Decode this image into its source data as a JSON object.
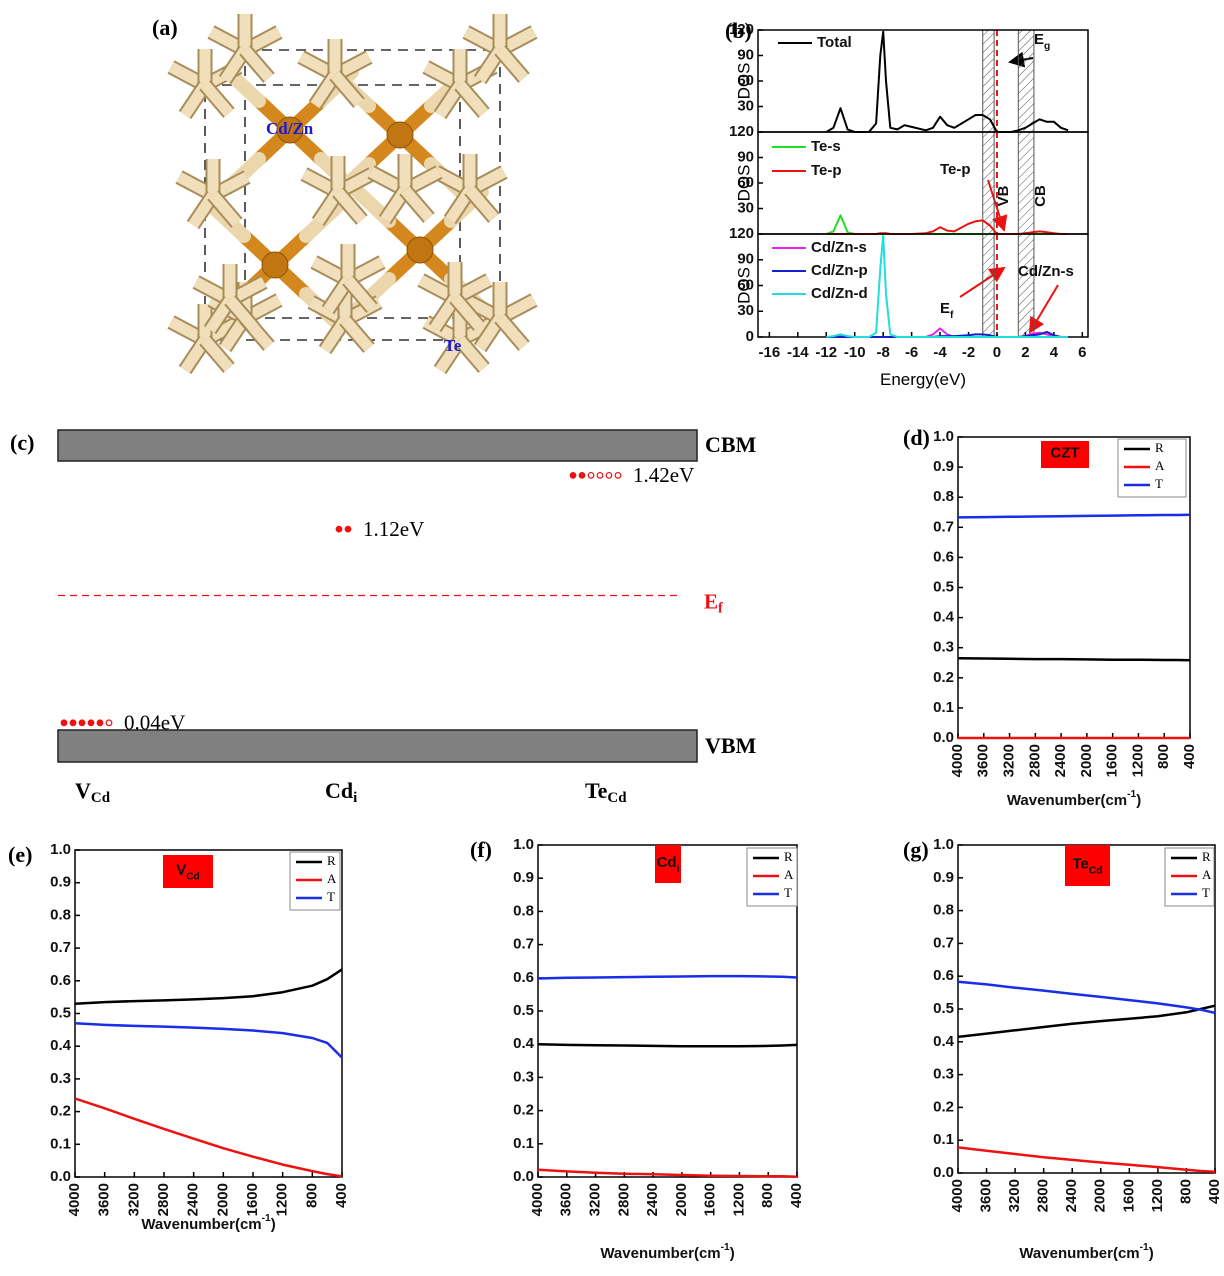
{
  "structure": {
    "panel": "(a)",
    "labels": [
      "Cd/Zn",
      "Te"
    ]
  },
  "chart_data": [
    {
      "type": "line",
      "panel": "(b)",
      "ylabel": "DOS",
      "x": [
        -12,
        -11.5,
        -11,
        -10.5,
        -10,
        -9,
        -8.5,
        -8.2,
        -8,
        -7.8,
        -7.5,
        -7,
        -6.5,
        -6,
        -5,
        -4.5,
        -4,
        -3.5,
        -3,
        -2,
        -1.5,
        -1,
        -0.5,
        0,
        1,
        1.5,
        2,
        2.5,
        3,
        3.5,
        4,
        4.5,
        5
      ],
      "xlim": [
        -16.8,
        6.4
      ],
      "ylim": [
        0,
        120
      ],
      "yticks": [
        30,
        60,
        90,
        120
      ],
      "shaded_x": [
        [
          -1,
          -0.2
        ],
        [
          1.5,
          2.6
        ]
      ],
      "fermi_x": 0,
      "series": [
        {
          "name": "Total",
          "color": "#000000",
          "values": [
            0,
            5,
            28,
            3,
            0,
            0,
            10,
            90,
            118,
            60,
            5,
            3,
            8,
            6,
            2,
            5,
            18,
            8,
            5,
            15,
            20,
            20,
            15,
            0,
            0,
            2,
            5,
            10,
            15,
            12,
            12,
            5,
            2
          ]
        }
      ],
      "annotations": [
        {
          "text": "E",
          "sub": "g"
        }
      ]
    },
    {
      "type": "line",
      "ylabel": "DOS",
      "x": [
        -12,
        -11.5,
        -11,
        -10.5,
        -10,
        -9,
        -8.5,
        -8.2,
        -8,
        -7.8,
        -7.5,
        -7,
        -6.5,
        -6,
        -5,
        -4.5,
        -4,
        -3.5,
        -3,
        -2,
        -1.5,
        -1,
        -0.5,
        0,
        1,
        1.5,
        2,
        2.5,
        3,
        3.5,
        4,
        4.5,
        5
      ],
      "xlim": [
        -16.8,
        6.4
      ],
      "ylim": [
        0,
        120
      ],
      "yticks": [
        30,
        60,
        90,
        120
      ],
      "shaded_x": [
        [
          -1,
          -0.2
        ],
        [
          1.5,
          2.6
        ]
      ],
      "fermi_x": 0,
      "band_labels": [
        "VB",
        "CB"
      ],
      "series": [
        {
          "name": "Te-s",
          "color": "#22dd22",
          "values": [
            0,
            3,
            22,
            2,
            0,
            0,
            0,
            0,
            0,
            0,
            0,
            0,
            0,
            0,
            0,
            0,
            0,
            0,
            0,
            0,
            0,
            0,
            0,
            0,
            0,
            0,
            0,
            0,
            0,
            0,
            0,
            0,
            0
          ]
        },
        {
          "name": "Te-p",
          "color": "#ee1111",
          "values": [
            0,
            0,
            0,
            0,
            0,
            0,
            0,
            1,
            1,
            1,
            0,
            0,
            0,
            0,
            1,
            3,
            8,
            4,
            3,
            12,
            15,
            16,
            10,
            0,
            0,
            0,
            1,
            2,
            3,
            2,
            1,
            0,
            0
          ]
        }
      ],
      "annotations": [
        {
          "text": "Te-p"
        }
      ]
    },
    {
      "type": "line",
      "ylabel": "DOS",
      "xlabel": "Energy(eV)",
      "x": [
        -12,
        -11.5,
        -11,
        -10.5,
        -10,
        -9,
        -8.5,
        -8.2,
        -8,
        -7.8,
        -7.5,
        -7,
        -6.5,
        -6,
        -5,
        -4.5,
        -4,
        -3.5,
        -3,
        -2,
        -1.5,
        -1,
        -0.5,
        0,
        1,
        1.5,
        2,
        2.5,
        3,
        3.5,
        4,
        4.5,
        5
      ],
      "xlim": [
        -16.8,
        6.4
      ],
      "ylim": [
        0,
        120
      ],
      "yticks": [
        0,
        30,
        60,
        90,
        120
      ],
      "xticks": [
        -16,
        -14,
        -12,
        -10,
        -8,
        -6,
        -4,
        -2,
        0,
        2,
        4,
        6
      ],
      "shaded_x": [
        [
          -1,
          -0.2
        ],
        [
          1.5,
          2.6
        ]
      ],
      "fermi_x": 0,
      "series": [
        {
          "name": "Cd/Zn-s",
          "color": "#ee22ee",
          "values": [
            0,
            0,
            1,
            0,
            0,
            0,
            0,
            0,
            0,
            0,
            0,
            0,
            0,
            0,
            0,
            3,
            10,
            3,
            0,
            0,
            0,
            0,
            0,
            0,
            0,
            0,
            1,
            4,
            5,
            3,
            1,
            0,
            0
          ]
        },
        {
          "name": "Cd/Zn-p",
          "color": "#1122cc",
          "values": [
            0,
            0,
            0,
            0,
            0,
            0,
            0,
            0,
            0,
            0,
            0,
            0,
            0,
            0,
            0,
            0,
            1,
            1,
            1,
            2,
            3,
            3,
            2,
            0,
            0,
            0,
            1,
            2,
            3,
            6,
            2,
            0,
            0
          ]
        },
        {
          "name": "Cd/Zn-d",
          "color": "#22dddd",
          "values": [
            0,
            1,
            3,
            1,
            0,
            0,
            5,
            80,
            118,
            50,
            3,
            0,
            0,
            0,
            0,
            0,
            0,
            0,
            0,
            0,
            0,
            0,
            0,
            0,
            0,
            0,
            0,
            0,
            0,
            0,
            0,
            0,
            0
          ]
        }
      ],
      "annotations": [
        {
          "text": "E",
          "sub": "f"
        },
        {
          "text": "Cd/Zn-s"
        }
      ]
    },
    {
      "type": "levels",
      "panel": "(c)",
      "band_labels": [
        "CBM",
        "VBM"
      ],
      "ylim": [
        0,
        1.5
      ],
      "categories": [
        "V",
        "Cd",
        "Te"
      ],
      "category_subscripts": [
        "Cd",
        "i",
        "Cd"
      ],
      "values": [
        0.04,
        1.12,
        1.42
      ],
      "value_labels": [
        "0.04eV",
        "1.12eV",
        "1.42eV"
      ],
      "markers": [
        {
          "filled": 5,
          "empty": 1
        },
        {
          "filled": 2,
          "empty": 0
        },
        {
          "filled": 2,
          "empty": 4
        }
      ],
      "fermi_label": {
        "text": "E",
        "sub": "f"
      }
    },
    {
      "type": "line",
      "panel": "(d)",
      "title": "CZT",
      "xlabel": "Wavenumber(cm",
      "xlabel_superscript": "-1",
      "xlabel_suffix": ")",
      "x": [
        4000,
        3600,
        3200,
        2800,
        2400,
        2000,
        1600,
        1200,
        800,
        600,
        400
      ],
      "xlim": [
        4000,
        400
      ],
      "ylim": [
        0,
        1.0
      ],
      "xticks": [
        4000,
        3600,
        3200,
        2800,
        2400,
        2000,
        1600,
        1200,
        800,
        400
      ],
      "yticks": [
        {
          "value": 0,
          "label": "0.0"
        },
        0.1,
        0.2,
        0.3,
        0.4,
        0.5,
        0.6,
        0.7,
        0.8,
        0.9,
        {
          "value": 1,
          "label": "1.0"
        }
      ],
      "legend": "upper right",
      "series": [
        {
          "name": "R",
          "color": "#000000",
          "values": [
            0.265,
            0.264,
            0.263,
            0.262,
            0.262,
            0.261,
            0.26,
            0.26,
            0.259,
            0.259,
            0.258
          ]
        },
        {
          "name": "A",
          "color": "#ee1111",
          "values": [
            0,
            0,
            0,
            0,
            0,
            0,
            0,
            0,
            0,
            0,
            0
          ]
        },
        {
          "name": "T",
          "color": "#1a2ee8",
          "values": [
            0.733,
            0.734,
            0.735,
            0.736,
            0.737,
            0.738,
            0.739,
            0.74,
            0.741,
            0.741,
            0.742
          ]
        }
      ]
    },
    {
      "type": "line",
      "panel": "(e)",
      "title": "V",
      "title_subscript": "Cd",
      "xlabel": "Wavenumber(cm",
      "xlabel_superscript": "-1",
      "xlabel_suffix": ")",
      "x": [
        4000,
        3600,
        3200,
        2800,
        2400,
        2000,
        1600,
        1200,
        800,
        600,
        400
      ],
      "xlim": [
        4000,
        400
      ],
      "ylim": [
        0,
        1.0
      ],
      "xticks": [
        4000,
        3600,
        3200,
        2800,
        2400,
        2000,
        1600,
        1200,
        800,
        400
      ],
      "yticks": [
        {
          "value": 0,
          "label": "0.0"
        },
        0.1,
        0.2,
        0.3,
        0.4,
        0.5,
        0.6,
        0.7,
        0.8,
        0.9,
        {
          "value": 1,
          "label": "1.0"
        }
      ],
      "legend": "upper right",
      "series": [
        {
          "name": "R",
          "color": "#000000",
          "values": [
            0.53,
            0.535,
            0.538,
            0.54,
            0.543,
            0.547,
            0.553,
            0.565,
            0.585,
            0.605,
            0.635
          ]
        },
        {
          "name": "A",
          "color": "#ee1111",
          "values": [
            0.24,
            0.21,
            0.178,
            0.147,
            0.117,
            0.088,
            0.062,
            0.038,
            0.018,
            0.009,
            0.002
          ]
        },
        {
          "name": "T",
          "color": "#1a2ee8",
          "values": [
            0.47,
            0.465,
            0.462,
            0.46,
            0.457,
            0.453,
            0.448,
            0.44,
            0.425,
            0.41,
            0.365
          ]
        }
      ]
    },
    {
      "type": "line",
      "panel": "(f)",
      "title": "Cd",
      "title_subscript": "i",
      "xlabel": "Wavenumber(cm",
      "xlabel_superscript": "-1",
      "xlabel_suffix": ")",
      "x": [
        4000,
        3600,
        3200,
        2800,
        2400,
        2000,
        1600,
        1200,
        800,
        600,
        400
      ],
      "xlim": [
        4000,
        400
      ],
      "ylim": [
        0,
        1.0
      ],
      "xticks": [
        4000,
        3600,
        3200,
        2800,
        2400,
        2000,
        1600,
        1200,
        800,
        400
      ],
      "yticks": [
        {
          "value": 0,
          "label": "0.0"
        },
        0.1,
        0.2,
        0.3,
        0.4,
        0.5,
        0.6,
        0.7,
        0.8,
        0.9,
        {
          "value": 1,
          "label": "1.0"
        }
      ],
      "legend": "upper right",
      "series": [
        {
          "name": "R",
          "color": "#000000",
          "values": [
            0.4,
            0.398,
            0.397,
            0.396,
            0.395,
            0.394,
            0.394,
            0.394,
            0.395,
            0.396,
            0.398
          ]
        },
        {
          "name": "A",
          "color": "#ee1111",
          "values": [
            0.022,
            0.017,
            0.013,
            0.01,
            0.008,
            0.006,
            0.004,
            0.003,
            0.002,
            0.002,
            0.001
          ]
        },
        {
          "name": "T",
          "color": "#1a2ee8",
          "values": [
            0.598,
            0.6,
            0.601,
            0.602,
            0.603,
            0.604,
            0.605,
            0.605,
            0.604,
            0.603,
            0.601
          ]
        }
      ]
    },
    {
      "type": "line",
      "panel": "(g)",
      "title": "Te",
      "title_subscript": "Cd",
      "xlabel": "Wavenumber(cm",
      "xlabel_superscript": "-1",
      "xlabel_suffix": ")",
      "x": [
        4000,
        3600,
        3200,
        2800,
        2400,
        2000,
        1600,
        1200,
        800,
        600,
        400
      ],
      "xlim": [
        4000,
        400
      ],
      "ylim": [
        0,
        1.0
      ],
      "xticks": [
        4000,
        3600,
        3200,
        2800,
        2400,
        2000,
        1600,
        1200,
        800,
        400
      ],
      "yticks": [
        {
          "value": 0,
          "label": "0.0"
        },
        0.1,
        0.2,
        0.3,
        0.4,
        0.5,
        0.6,
        0.7,
        0.8,
        0.9,
        {
          "value": 1,
          "label": "1.0"
        }
      ],
      "legend": "upper right",
      "series": [
        {
          "name": "R",
          "color": "#000000",
          "values": [
            0.415,
            0.425,
            0.435,
            0.445,
            0.455,
            0.463,
            0.47,
            0.478,
            0.49,
            0.5,
            0.51
          ]
        },
        {
          "name": "A",
          "color": "#ee1111",
          "values": [
            0.078,
            0.068,
            0.058,
            0.048,
            0.04,
            0.032,
            0.025,
            0.018,
            0.01,
            0.006,
            0.004
          ]
        },
        {
          "name": "T",
          "color": "#1a2ee8",
          "values": [
            0.583,
            0.575,
            0.565,
            0.556,
            0.546,
            0.537,
            0.527,
            0.517,
            0.505,
            0.498,
            0.488
          ]
        }
      ]
    }
  ]
}
